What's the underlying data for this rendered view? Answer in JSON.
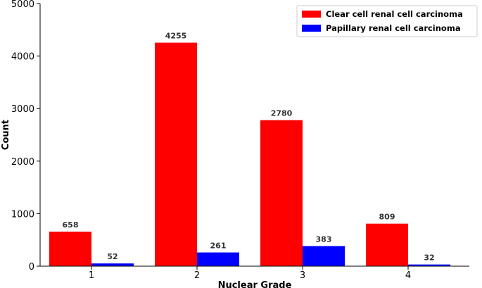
{
  "chart_data": {
    "type": "bar",
    "categories": [
      "1",
      "2",
      "3",
      "4"
    ],
    "series": [
      {
        "name": "Clear cell renal cell carcinoma",
        "color": "#ff0000",
        "values": [
          658,
          4255,
          2780,
          809
        ]
      },
      {
        "name": "Papillary renal cell carcinoma",
        "color": "#0000ff",
        "values": [
          52,
          261,
          383,
          32
        ]
      }
    ],
    "xlabel": "Nuclear Grade",
    "ylabel": "Count",
    "ylim": [
      0,
      5000
    ],
    "yticks": [
      0,
      1000,
      2000,
      3000,
      4000,
      5000
    ],
    "grid": false,
    "legend_position": "top-right",
    "data_labels": true
  }
}
